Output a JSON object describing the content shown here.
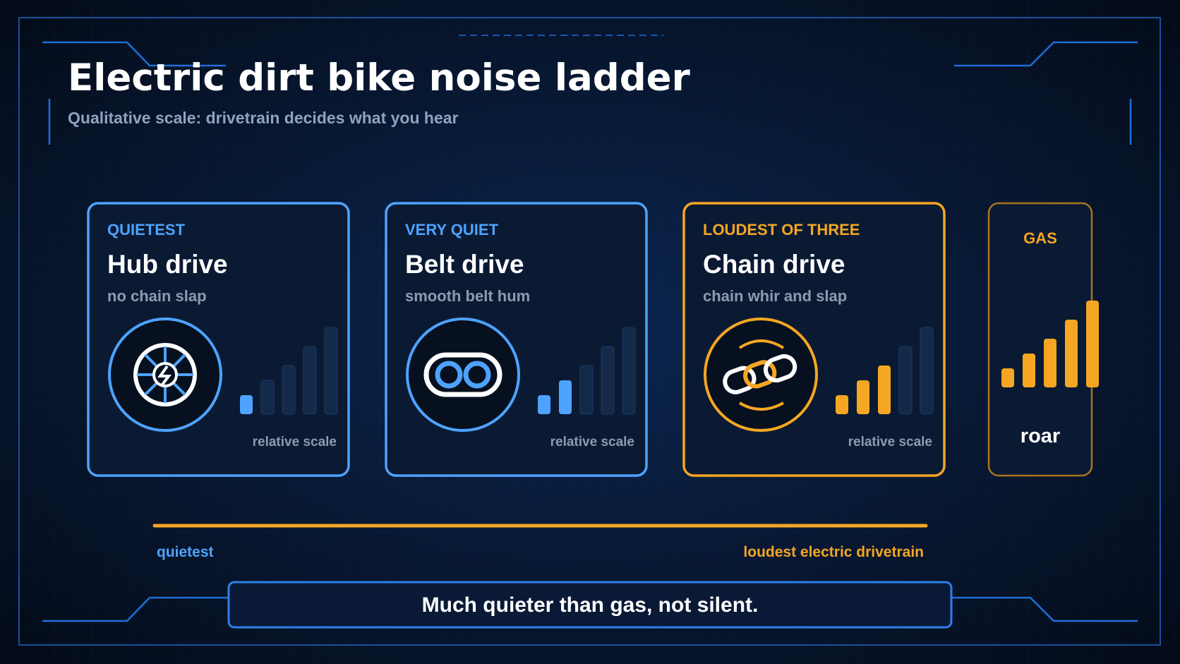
{
  "header": {
    "title": "Electric dirt bike noise ladder",
    "subtitle": "Qualitative scale: drivetrain decides what you hear"
  },
  "cards": [
    {
      "tag": "QUIETEST",
      "title": "Hub drive",
      "caption": "no chain slap",
      "scale_label": "relative scale",
      "level": 1,
      "color": "#4da3ff"
    },
    {
      "tag": "VERY QUIET",
      "title": "Belt drive",
      "caption": "smooth belt hum",
      "scale_label": "relative scale",
      "level": 2,
      "color": "#4da3ff"
    },
    {
      "tag": "LOUDEST OF THREE",
      "title": "Chain drive",
      "caption": "chain whir and slap",
      "scale_label": "relative scale",
      "level": 3,
      "color": "#f5a623"
    }
  ],
  "gas": {
    "tag": "GAS",
    "caption": "roar",
    "level": 5,
    "color": "#f5a623"
  },
  "axis": {
    "start_label": "quietest",
    "end_label": "loudest electric drivetrain"
  },
  "footer": "Much quieter than gas, not silent."
}
